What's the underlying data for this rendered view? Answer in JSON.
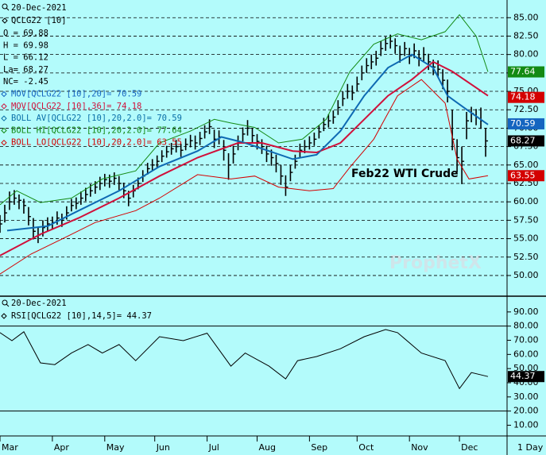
{
  "chart_data": [
    {
      "type": "hlc",
      "title": "20-Dec-2021",
      "symbol": "QCLG22 [10]",
      "stats": [
        "O = 69.88",
        "H = 69.98",
        "L = 66.12",
        "La= 68.27",
        "NC= -2.45"
      ],
      "annotation": "Feb22 WTI Crude",
      "watermark": "ProphetX",
      "interval": "1 Day",
      "xlim": [
        0,
        213
      ],
      "xticks": [
        {
          "value": 0,
          "label": "Mar"
        },
        {
          "value": 22,
          "label": "Apr"
        },
        {
          "value": 44,
          "label": "May"
        },
        {
          "value": 65,
          "label": "Jun"
        },
        {
          "value": 87,
          "label": "Jul"
        },
        {
          "value": 108,
          "label": "Aug"
        },
        {
          "value": 130,
          "label": "Sep"
        },
        {
          "value": 150,
          "label": "Oct"
        },
        {
          "value": 172,
          "label": "Nov"
        },
        {
          "value": 193,
          "label": "Dec"
        }
      ],
      "ylim": [
        47.3,
        87.4
      ],
      "yticks": [
        {
          "value": 50,
          "label": "50.00"
        },
        {
          "value": 52.5,
          "label": "52.50"
        },
        {
          "value": 55,
          "label": "55.00"
        },
        {
          "value": 57.5,
          "label": "57.50"
        },
        {
          "value": 60,
          "label": "60.00"
        },
        {
          "value": 62.5,
          "label": "62.50"
        },
        {
          "value": 65,
          "label": "65.00"
        },
        {
          "value": 67.5,
          "label": "67.50"
        },
        {
          "value": 70,
          "label": "70.00"
        },
        {
          "value": 72.5,
          "label": "72.50"
        },
        {
          "value": 75,
          "label": "75.00"
        },
        {
          "value": 77.5,
          "label": "77.50"
        },
        {
          "value": 80,
          "label": "80.00"
        },
        {
          "value": 82.5,
          "label": "82.50"
        },
        {
          "value": 85,
          "label": "85.00"
        }
      ],
      "grid": true,
      "bar_color": "#000000",
      "bars": {
        "x": [
          0,
          2,
          4,
          6,
          8,
          10,
          12,
          14,
          16,
          18,
          20,
          22,
          24,
          26,
          28,
          30,
          32,
          34,
          36,
          38,
          40,
          42,
          44,
          46,
          48,
          50,
          52,
          54,
          56,
          58,
          60,
          62,
          64,
          66,
          68,
          70,
          72,
          74,
          76,
          78,
          80,
          82,
          84,
          86,
          88,
          90,
          92,
          94,
          96,
          98,
          100,
          102,
          104,
          106,
          108,
          110,
          112,
          114,
          116,
          118,
          120,
          122,
          124,
          126,
          128,
          130,
          132,
          134,
          136,
          138,
          140,
          142,
          144,
          146,
          148,
          150,
          152,
          154,
          156,
          158,
          160,
          162,
          164,
          166,
          168,
          170,
          172,
          174,
          176,
          178,
          180,
          182,
          184,
          186,
          188,
          190,
          192,
          194,
          196,
          198,
          200,
          202,
          204
        ],
        "high": [
          58.2,
          59.6,
          61.4,
          61.6,
          61.0,
          60.4,
          59.3,
          57.8,
          56.6,
          57.5,
          57.9,
          58.0,
          58.7,
          58.4,
          59.4,
          60.4,
          60.6,
          61.4,
          61.9,
          62.4,
          62.8,
          63.4,
          63.8,
          63.7,
          64.0,
          63.5,
          62.6,
          61.5,
          62.3,
          63.3,
          64.3,
          65.3,
          65.8,
          66.3,
          67.0,
          67.6,
          68.0,
          68.4,
          67.9,
          68.6,
          69.1,
          69.0,
          69.5,
          70.4,
          71.2,
          69.8,
          69.7,
          68.4,
          66.6,
          67.6,
          69.0,
          70.1,
          71.1,
          70.0,
          69.2,
          68.5,
          67.6,
          67.1,
          66.4,
          65.0,
          63.6,
          65.0,
          66.4,
          67.9,
          68.4,
          68.9,
          69.4,
          70.4,
          71.4,
          71.9,
          72.4,
          73.8,
          75.0,
          76.0,
          75.8,
          77.0,
          78.5,
          79.5,
          80.0,
          80.5,
          81.8,
          82.4,
          82.7,
          82.2,
          81.2,
          81.7,
          80.9,
          81.5,
          80.6,
          81.0,
          80.1,
          79.3,
          79.2,
          78.0,
          76.6,
          72.5,
          68.5,
          67.5,
          72.2,
          72.9,
          72.6,
          72.8,
          69.98
        ],
        "low": [
          55.8,
          57.2,
          58.9,
          59.6,
          59.0,
          58.4,
          56.8,
          54.9,
          54.4,
          55.3,
          56.0,
          56.3,
          56.9,
          56.6,
          57.6,
          58.7,
          59.0,
          59.6,
          60.1,
          60.7,
          61.1,
          61.6,
          62.1,
          61.9,
          62.3,
          61.6,
          60.5,
          59.4,
          60.6,
          61.7,
          62.7,
          63.7,
          64.2,
          64.7,
          65.4,
          66.0,
          66.4,
          66.7,
          66.1,
          67.0,
          67.4,
          67.1,
          67.7,
          68.6,
          69.2,
          67.3,
          67.8,
          65.6,
          63.0,
          65.2,
          67.0,
          68.2,
          69.0,
          68.0,
          67.1,
          66.5,
          65.4,
          64.9,
          64.0,
          62.3,
          60.8,
          62.8,
          64.5,
          66.0,
          66.6,
          67.1,
          67.6,
          68.6,
          69.6,
          70.1,
          70.6,
          71.8,
          73.0,
          74.0,
          73.8,
          75.0,
          76.5,
          77.5,
          78.0,
          78.5,
          79.8,
          80.5,
          80.8,
          80.1,
          78.9,
          79.8,
          78.7,
          79.5,
          78.4,
          79.0,
          77.9,
          77.2,
          76.9,
          75.3,
          73.5,
          67.0,
          64.0,
          62.4,
          68.5,
          70.8,
          70.4,
          69.9,
          66.12
        ],
        "close": [
          57.0,
          58.5,
          60.0,
          60.5,
          60.2,
          59.5,
          58.0,
          56.0,
          55.5,
          56.5,
          57.0,
          57.2,
          57.8,
          57.5,
          58.5,
          59.5,
          59.8,
          60.5,
          61.0,
          61.5,
          62.0,
          62.5,
          63.0,
          62.8,
          63.2,
          62.5,
          61.5,
          60.5,
          61.5,
          62.5,
          63.5,
          64.5,
          65.0,
          65.5,
          66.2,
          66.8,
          67.2,
          67.5,
          67.0,
          67.8,
          68.3,
          68.0,
          68.6,
          69.5,
          70.2,
          68.5,
          68.8,
          67.0,
          65.0,
          66.5,
          68.0,
          69.2,
          70.0,
          69.0,
          68.2,
          67.5,
          66.5,
          66.0,
          65.2,
          63.5,
          62.0,
          64.0,
          65.5,
          67.0,
          67.5,
          68.0,
          68.5,
          69.5,
          70.5,
          71.0,
          71.5,
          72.8,
          74.0,
          75.0,
          74.8,
          76.0,
          77.5,
          78.5,
          79.0,
          79.5,
          80.8,
          81.5,
          81.8,
          81.2,
          80.0,
          80.8,
          79.8,
          80.5,
          79.5,
          80.0,
          79.0,
          78.3,
          78.0,
          76.5,
          75.0,
          68.5,
          66.0,
          65.5,
          71.0,
          72.0,
          71.5,
          71.0,
          68.27
        ]
      },
      "series": [
        {
          "name": "MOV[QCLG22 [10],20]= 70.59",
          "color": "#1565c0",
          "width": 2,
          "x": [
            3,
            20,
            33,
            50,
            67,
            83,
            93,
            103,
            113,
            123,
            133,
            143,
            153,
            163,
            173,
            182,
            188,
            197,
            205
          ],
          "values": [
            56.1,
            56.7,
            58.8,
            61.5,
            64.8,
            66.9,
            68.8,
            68.0,
            66.9,
            65.8,
            66.4,
            69.6,
            74.4,
            78.2,
            80.0,
            78.2,
            74.4,
            72.3,
            70.5
          ]
        },
        {
          "name": "MOV[QCLG22 [10],36]= 74.18",
          "color": "#d0103a",
          "width": 2,
          "x": [
            0,
            17,
            33,
            50,
            67,
            83,
            100,
            110,
            123,
            133,
            143,
            153,
            163,
            173,
            182,
            190,
            205
          ],
          "values": [
            52.7,
            55.6,
            57.8,
            60.5,
            63.5,
            66.0,
            68.0,
            68.0,
            66.9,
            66.7,
            68.0,
            71.2,
            74.4,
            76.6,
            79.0,
            77.7,
            74.4
          ]
        },
        {
          "name": "BOLL AV[QCLG22 [10],20,2.0]= 70.59",
          "color": "#0a6fa8",
          "width": 1,
          "x": [
            3,
            20,
            33,
            50,
            67,
            83,
            93,
            103,
            113,
            123,
            133,
            143,
            153,
            163,
            173,
            182,
            188,
            197,
            205
          ],
          "values": [
            56.1,
            56.7,
            58.8,
            61.5,
            64.8,
            66.9,
            68.8,
            68.0,
            66.9,
            65.8,
            66.4,
            69.6,
            74.4,
            78.2,
            80.0,
            78.2,
            74.4,
            72.3,
            70.5
          ]
        },
        {
          "name": "BOLL HI[QCLG22 [10],20,2.0]= 77.64",
          "color": "#138a13",
          "width": 1,
          "x": [
            0,
            7,
            17,
            30,
            43,
            57,
            67,
            80,
            90,
            97,
            107,
            117,
            127,
            137,
            147,
            157,
            167,
            177,
            187,
            193,
            200,
            205
          ],
          "values": [
            59.6,
            61.5,
            59.9,
            60.5,
            63.1,
            64.2,
            68.0,
            69.6,
            71.2,
            70.7,
            70.1,
            68.0,
            68.5,
            71.2,
            77.7,
            81.4,
            82.8,
            82.0,
            83.1,
            85.4,
            82.5,
            77.64
          ]
        },
        {
          "name": "BOLL LO[QCLG22 [10],20,2.0]= 63.55",
          "color": "#d40000",
          "width": 1,
          "x": [
            0,
            13,
            27,
            40,
            57,
            67,
            83,
            97,
            107,
            117,
            130,
            140,
            147,
            157,
            167,
            177,
            187,
            192,
            197,
            205
          ],
          "values": [
            50.2,
            52.9,
            55.1,
            57.2,
            58.8,
            60.5,
            63.7,
            63.1,
            63.5,
            62.0,
            61.5,
            61.8,
            64.7,
            68.5,
            74.4,
            76.6,
            73.4,
            65.8,
            63.1,
            63.55
          ]
        }
      ],
      "tags": [
        77.64,
        74.18,
        70.59,
        68.27,
        63.55
      ],
      "tag_colors": [
        "#138a13",
        "#d40000",
        "#1565c0",
        "#000000",
        "#d40000"
      ]
    },
    {
      "type": "line",
      "title": "20-Dec-2021",
      "xlim": [
        0,
        213
      ],
      "ylim": [
        3,
        100
      ],
      "yticks": [
        {
          "value": 10,
          "label": "10.00"
        },
        {
          "value": 20,
          "label": "20.00"
        },
        {
          "value": 30,
          "label": "30.00"
        },
        {
          "value": 40,
          "label": "40.00"
        },
        {
          "value": 50,
          "label": "50.00"
        },
        {
          "value": 60,
          "label": "60.00"
        },
        {
          "value": 70,
          "label": "70.00"
        },
        {
          "value": 80,
          "label": "80.00"
        },
        {
          "value": 90,
          "label": "90.00"
        }
      ],
      "reference_lines": [
        20,
        80
      ],
      "series": [
        {
          "name": "RSI[QCLG22 [10],14,5]= 44.37",
          "color": "#000000",
          "x": [
            0,
            5,
            10,
            17,
            23,
            30,
            37,
            43,
            50,
            57,
            67,
            77,
            87,
            97,
            103,
            113,
            120,
            125,
            133,
            143,
            153,
            162,
            167,
            177,
            187,
            193,
            198,
            205
          ],
          "values": [
            75.4,
            69.7,
            76.0,
            54.0,
            52.8,
            61.0,
            67.0,
            61.0,
            67.0,
            55.6,
            72.5,
            69.7,
            75.0,
            51.7,
            61.0,
            51.7,
            42.7,
            55.6,
            58.5,
            64.0,
            72.5,
            77.6,
            75.4,
            61.0,
            55.6,
            35.9,
            47.2,
            44.37
          ]
        }
      ],
      "tags": [
        44.37
      ],
      "tag_colors": [
        "#000000"
      ]
    }
  ]
}
